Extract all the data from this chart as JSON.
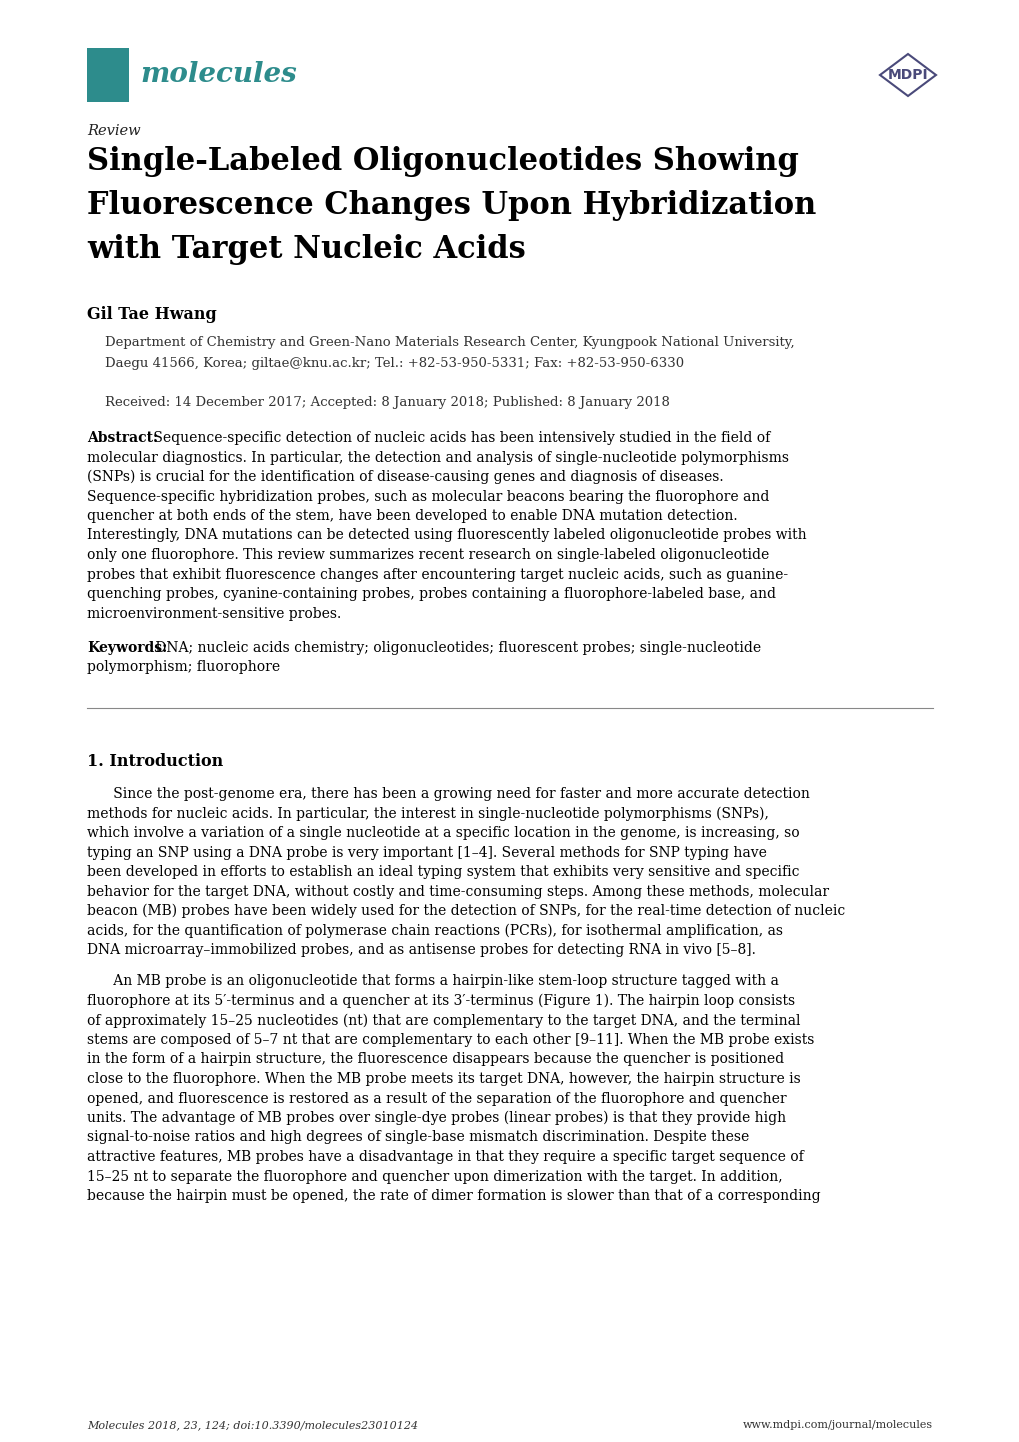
{
  "background_color": "#ffffff",
  "page_width": 10.2,
  "page_height": 14.42,
  "dpi": 100,
  "teal_color": "#2d8c8c",
  "mdpi_color": "#4a4a7a",
  "journal_name": "molecules",
  "review_label": "Review",
  "title_line1": "Single-Labeled Oligonucleotides Showing",
  "title_line2": "Fluorescence Changes Upon Hybridization",
  "title_line3": "with Target Nucleic Acids",
  "author": "Gil Tae Hwang",
  "affiliation_line1": "Department of Chemistry and Green-Nano Materials Research Center, Kyungpook National University,",
  "affiliation_line2": "Daegu 41566, Korea; giltae@knu.ac.kr; Tel.: +82-53-950-5331; Fax: +82-53-950-6330",
  "received": "Received: 14 December 2017; Accepted: 8 January 2018; Published: 8 January 2018",
  "abstract_label": "Abstract:",
  "keywords_label": "Keywords:",
  "keywords_text": "DNA; nucleic acids chemistry; oligonucleotides; fluorescent probes; single-nucleotide polymorphism; fluorophore",
  "section1_title": "1. Introduction",
  "footer_left": "Molecules 2018, 23, 124; doi:10.3390/molecules23010124",
  "footer_right": "www.mdpi.com/journal/molecules",
  "abs_lines": [
    "Abstract: Sequence-specific detection of nucleic acids has been intensively studied in the field of",
    "molecular diagnostics. In particular, the detection and analysis of single-nucleotide polymorphisms",
    "(SNPs) is crucial for the identification of disease-causing genes and diagnosis of diseases.",
    "Sequence-specific hybridization probes, such as molecular beacons bearing the fluorophore and",
    "quencher at both ends of the stem, have been developed to enable DNA mutation detection.",
    "Interestingly, DNA mutations can be detected using fluorescently labeled oligonucleotide probes with",
    "only one fluorophore. This review summarizes recent research on single-labeled oligonucleotide",
    "probes that exhibit fluorescence changes after encountering target nucleic acids, such as guanine-",
    "quenching probes, cyanine-containing probes, probes containing a fluorophore-labeled base, and",
    "microenvironment-sensitive probes."
  ],
  "kw_lines": [
    "Keywords: DNA; nucleic acids chemistry; oligonucleotides; fluorescent probes; single-nucleotide",
    "polymorphism; fluorophore"
  ],
  "p1_lines": [
    "      Since the post-genome era, there has been a growing need for faster and more accurate detection",
    "methods for nucleic acids. In particular, the interest in single-nucleotide polymorphisms (SNPs),",
    "which involve a variation of a single nucleotide at a specific location in the genome, is increasing, so",
    "typing an SNP using a DNA probe is very important [1–4]. Several methods for SNP typing have",
    "been developed in efforts to establish an ideal typing system that exhibits very sensitive and specific",
    "behavior for the target DNA, without costly and time-consuming steps. Among these methods, molecular",
    "beacon (MB) probes have been widely used for the detection of SNPs, for the real-time detection of nucleic",
    "acids, for the quantification of polymerase chain reactions (PCRs), for isothermal amplification, as",
    "DNA microarray–immobilized probes, and as antisense probes for detecting RNA in vivo [5–8]."
  ],
  "p2_lines": [
    "      An MB probe is an oligonucleotide that forms a hairpin-like stem-loop structure tagged with a",
    "fluorophore at its 5′-terminus and a quencher at its 3′-terminus (Figure 1). The hairpin loop consists",
    "of approximately 15–25 nucleotides (nt) that are complementary to the target DNA, and the terminal",
    "stems are composed of 5–7 nt that are complementary to each other [9–11]. When the MB probe exists",
    "in the form of a hairpin structure, the fluorescence disappears because the quencher is positioned",
    "close to the fluorophore. When the MB probe meets its target DNA, however, the hairpin structure is",
    "opened, and fluorescence is restored as a result of the separation of the fluorophore and quencher",
    "units. The advantage of MB probes over single-dye probes (linear probes) is that they provide high",
    "signal-to-noise ratios and high degrees of single-base mismatch discrimination. Despite these",
    "attractive features, MB probes have a disadvantage in that they require a specific target sequence of",
    "15–25 nt to separate the fluorophore and quencher upon dimerization with the target. In addition,",
    "because the hairpin must be opened, the rate of dimer formation is slower than that of a corresponding"
  ]
}
